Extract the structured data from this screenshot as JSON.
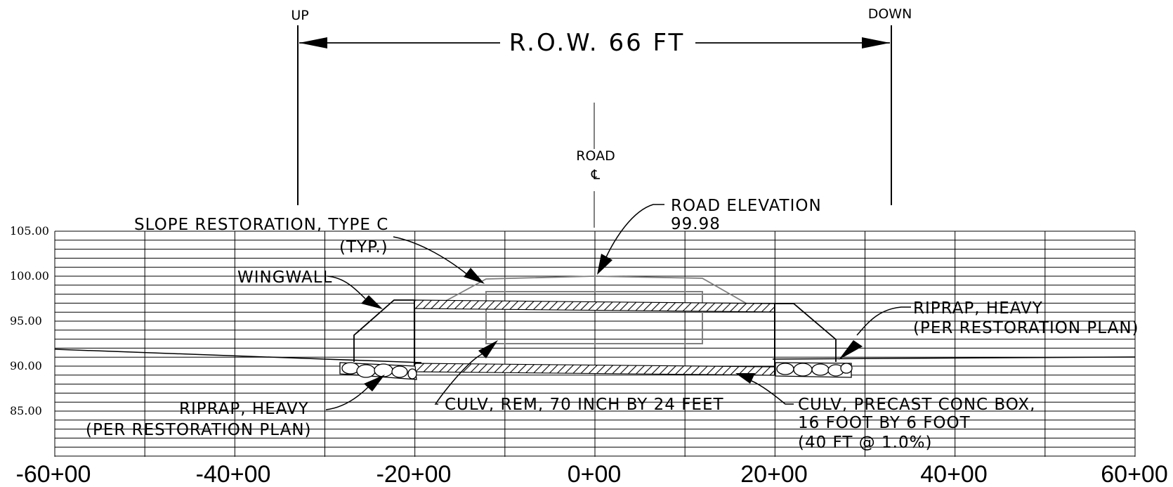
{
  "row": {
    "label": "R.O.W. 66 FT",
    "up_label": "UP",
    "down_label": "DOWN"
  },
  "road_cl": {
    "label": "ROAD",
    "symbol": "℄"
  },
  "notes": {
    "road_elevation_l1": "ROAD ELEVATION",
    "road_elevation_l2": "99.98",
    "slope_l1": "SLOPE RESTORATION, TYPE C",
    "slope_l2": "(TYP.)",
    "wingwall": "WINGWALL",
    "riprap_right_l1": "RIPRAP, HEAVY",
    "riprap_right_l2": "(PER RESTORATION PLAN)",
    "riprap_left_l1": "RIPRAP, HEAVY",
    "riprap_left_l2": "(PER RESTORATION PLAN)",
    "culv_rem": "CULV, REM, 70 INCH BY 24 FEET",
    "culv_box_l1": "CULV, PRECAST CONC BOX,",
    "culv_box_l2": "16 FOOT BY 6 FOOT",
    "culv_box_l3": "(40 FT @ 1.0%)"
  },
  "axis": {
    "elevation_labels": [
      "105.00",
      "100.00",
      "95.00",
      "90.00",
      "85.00"
    ],
    "station_labels": [
      "-60+00",
      "-40+00",
      "-20+00",
      "0+00",
      "20+00",
      "40+00",
      "60+00"
    ]
  },
  "colors": {
    "ink": "#000000",
    "existing": "#808080"
  }
}
